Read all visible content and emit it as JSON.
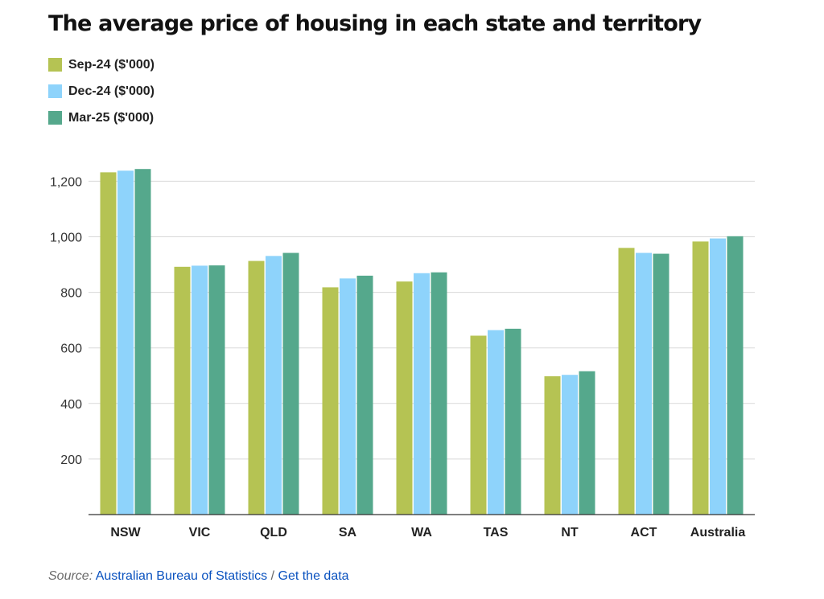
{
  "title": "The average price of housing in each state and territory",
  "colors": {
    "sep24": "#b5c353",
    "dec24": "#8ed3fb",
    "mar25": "#55a88c",
    "grid": "#d9d9d9",
    "axis": "#333333"
  },
  "legend": [
    {
      "label": "Sep-24 ($'000)"
    },
    {
      "label": "Dec-24 ($'000)"
    },
    {
      "label": "Mar-25 ($'000)"
    }
  ],
  "chart_data": {
    "type": "bar",
    "categories": [
      "NSW",
      "VIC",
      "QLD",
      "SA",
      "WA",
      "TAS",
      "NT",
      "ACT",
      "Australia"
    ],
    "series": [
      {
        "name": "Sep-24 ($'000)",
        "values": [
          1232,
          892,
          913,
          818,
          839,
          644,
          498,
          960,
          983
        ]
      },
      {
        "name": "Dec-24 ($'000)",
        "values": [
          1238,
          896,
          931,
          850,
          869,
          664,
          503,
          942,
          994
        ]
      },
      {
        "name": "Mar-25 ($'000)",
        "values": [
          1244,
          897,
          942,
          860,
          872,
          669,
          516,
          939,
          1002
        ]
      }
    ],
    "yticks": [
      "200",
      "400",
      "600",
      "800",
      "1,000",
      "1,200"
    ],
    "ytick_values": [
      200,
      400,
      600,
      800,
      1000,
      1200
    ],
    "ylim": [
      0,
      1300
    ],
    "grid": true,
    "legend_position": "top-left"
  },
  "source": {
    "prefix": "Source:",
    "link1": "Australian Bureau of Statistics",
    "separator": "/",
    "link2": "Get the data"
  }
}
